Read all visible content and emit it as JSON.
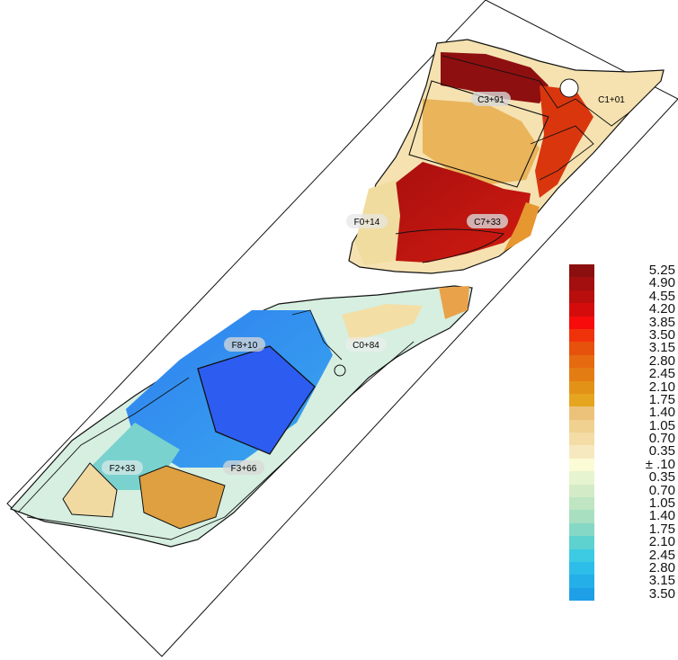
{
  "station_labels": [
    "C3+91",
    "C1+01",
    "F0+14",
    "C7+33",
    "F8+10",
    "C0+84",
    "F2+33",
    "F3+66"
  ],
  "legend": [
    {
      "value": "5.25",
      "color": "#8c0f0f"
    },
    {
      "value": "4.90",
      "color": "#a30e0e"
    },
    {
      "value": "4.55",
      "color": "#b80e0e"
    },
    {
      "value": "4.20",
      "color": "#d40c0c"
    },
    {
      "value": "3.85",
      "color": "#f70b0b"
    },
    {
      "value": "3.50",
      "color": "#f0320a"
    },
    {
      "value": "3.15",
      "color": "#e6520c"
    },
    {
      "value": "2.80",
      "color": "#e56a10"
    },
    {
      "value": "2.45",
      "color": "#e47c14"
    },
    {
      "value": "2.10",
      "color": "#e39218"
    },
    {
      "value": "1.75",
      "color": "#e5a51e"
    },
    {
      "value": "1.40",
      "color": "#ecc27a"
    },
    {
      "value": "1.05",
      "color": "#f0d190"
    },
    {
      "value": "0.70",
      "color": "#f3dca6"
    },
    {
      "value": "0.35",
      "color": "#f7e9bf"
    },
    {
      "value": "± .10",
      "color": "#fbfbd6"
    },
    {
      "value": "0.35",
      "color": "#e6f4cf"
    },
    {
      "value": "0.70",
      "color": "#d3ecc7"
    },
    {
      "value": "1.05",
      "color": "#bfe5c2"
    },
    {
      "value": "1.40",
      "color": "#a8dfc1"
    },
    {
      "value": "1.75",
      "color": "#86d8c6"
    },
    {
      "value": "2.10",
      "color": "#5ed2cf"
    },
    {
      "value": "2.45",
      "color": "#3ccbe2"
    },
    {
      "value": "2.80",
      "color": "#2dbde9"
    },
    {
      "value": "3.15",
      "color": "#24afe9"
    },
    {
      "value": "3.50",
      "color": "#1f9fe6"
    }
  ],
  "colors": {
    "deep_blue": "#2d5cf0",
    "blue": "#2f86ef",
    "dark_red": "#a80f0f"
  }
}
